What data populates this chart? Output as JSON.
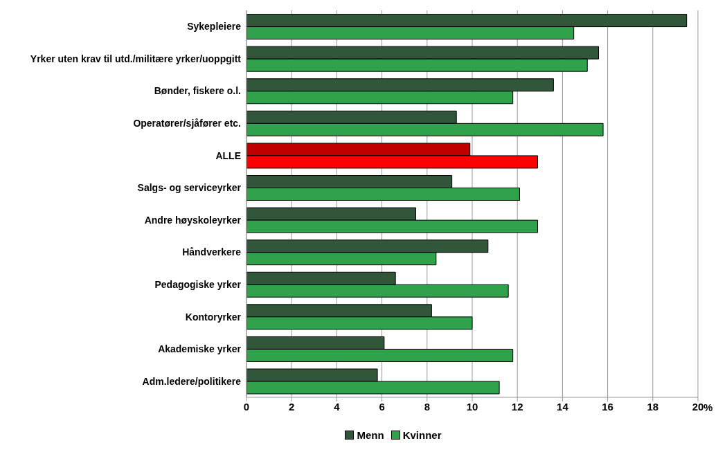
{
  "chart_data": {
    "type": "bar",
    "orientation": "horizontal",
    "xlabel": "%",
    "categories": [
      "Sykepleiere",
      "Yrker uten krav til utd./militære yrker/uoppgitt",
      "Bønder, fiskere o.l.",
      "Operatører/sjåfører etc.",
      "ALLE",
      "Salgs- og serviceyrker",
      "Andre høyskoleyrker ",
      "Håndverkere ",
      "Pedagogiske yrker",
      "Kontoryrker",
      "Akademiske yrker",
      "Adm.ledere/politikere"
    ],
    "series": [
      {
        "name": "Menn",
        "color": "#31563a",
        "colors": [
          "#31563a",
          "#31563a",
          "#31563a",
          "#31563a",
          "#c00000",
          "#31563a",
          "#31563a",
          "#31563a",
          "#31563a",
          "#31563a",
          "#31563a",
          "#31563a"
        ],
        "values": [
          19.5,
          15.6,
          13.6,
          9.3,
          9.9,
          9.1,
          7.5,
          10.7,
          6.6,
          8.2,
          6.1,
          5.8
        ]
      },
      {
        "name": "Kvinner",
        "color": "#31a24c",
        "colors": [
          "#31a24c",
          "#31a24c",
          "#31a24c",
          "#31a24c",
          "#ff0000",
          "#31a24c",
          "#31a24c",
          "#31a24c",
          "#31a24c",
          "#31a24c",
          "#31a24c",
          "#31a24c"
        ],
        "values": [
          14.5,
          15.1,
          11.8,
          15.8,
          12.9,
          12.1,
          12.9,
          8.4,
          11.6,
          10.0,
          11.8,
          11.2
        ]
      }
    ],
    "xlim": [
      0,
      20
    ],
    "xticks": [
      0,
      2,
      4,
      6,
      8,
      10,
      12,
      14,
      16,
      18,
      20
    ],
    "grid": "x",
    "legend": "bottom"
  }
}
